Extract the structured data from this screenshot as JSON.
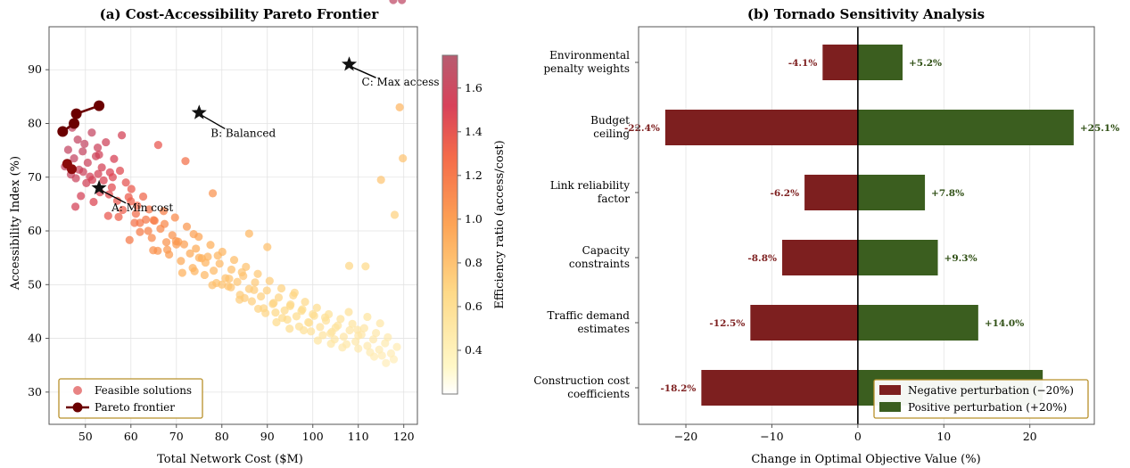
{
  "chart_data": [
    {
      "type": "scatter",
      "title": "(a) Cost-Accessibility Pareto Frontier",
      "xlabel": "Total Network Cost ($M)",
      "ylabel": "Accessibility Index (%)",
      "xlim": [
        42,
        123
      ],
      "ylim": [
        24,
        98
      ],
      "xticks": [
        50,
        60,
        70,
        80,
        90,
        100,
        110,
        120
      ],
      "yticks": [
        30,
        40,
        50,
        60,
        70,
        80,
        90
      ],
      "grid": true,
      "legend_placement": "lower-left",
      "colorbar": {
        "label": "Efficiency ratio (access/cost)",
        "range": [
          0.2,
          1.75
        ],
        "ticks": [
          0.4,
          0.6,
          0.8,
          1.0,
          1.2,
          1.4,
          1.6
        ],
        "colormap": "YlOrRd"
      },
      "series": [
        {
          "name": "Feasible solutions",
          "color": "#e05a5a",
          "points_x": [
            45.5,
            46.2,
            46.8,
            47.1,
            47.5,
            47.9,
            48.3,
            48.6,
            49.0,
            49.4,
            49.8,
            50.2,
            50.5,
            51.0,
            51.4,
            51.8,
            52.3,
            52.7,
            53.2,
            53.6,
            54.0,
            54.5,
            55.0,
            55.4,
            55.8,
            56.3,
            57.0,
            57.6,
            58.2,
            58.9,
            59.5,
            60.1,
            60.8,
            61.4,
            62.0,
            62.7,
            63.3,
            64.0,
            64.6,
            65.2,
            65.9,
            66.5,
            67.2,
            67.8,
            68.4,
            69.1,
            69.7,
            70.4,
            71.0,
            71.7,
            72.3,
            73.0,
            73.6,
            74.3,
            74.9,
            75.6,
            76.2,
            76.9,
            77.5,
            78.2,
            78.8,
            79.5,
            80.1,
            80.8,
            81.4,
            82.1,
            82.7,
            83.4,
            84.0,
            84.7,
            85.3,
            86.0,
            86.6,
            87.3,
            87.9,
            88.6,
            89.2,
            89.9,
            90.5,
            91.2,
            91.8,
            92.5,
            93.1,
            93.8,
            94.4,
            95.1,
            95.7,
            96.4,
            97.0,
            97.7,
            98.3,
            99.0,
            99.6,
            100.3,
            100.9,
            101.6,
            102.2,
            102.9,
            103.5,
            104.2,
            104.8,
            105.5,
            106.1,
            106.8,
            107.4,
            108.1,
            108.7,
            109.4,
            110.0,
            110.7,
            111.3,
            112.0,
            112.6,
            113.3,
            113.9,
            114.6,
            115.2,
            115.9,
            116.5,
            117.2,
            117.8,
            118.5,
            119.1,
            119.8,
            56.0,
            60.0,
            65.0,
            70.0,
            75.0,
            80.0,
            85.0,
            95.0,
            100.0,
            105.0,
            110.0,
            115.0,
            118.0,
            62.0,
            68.0,
            74.0,
            82.0,
            88.0,
            92.0,
            98.0,
            104.0,
            112.0,
            108.0,
            96.0,
            90.0,
            86.0,
            78.0,
            72.0,
            66.0,
            58.0,
            53.0,
            49.5,
            51.5,
            47.8,
            52.8,
            55.2,
            57.3,
            59.7,
            61.1,
            63.8,
            64.9,
            67.4,
            69.9,
            71.3,
            73.8,
            76.4,
            77.9,
            79.1,
            81.6,
            83.9,
            84.4,
            87.1,
            89.6,
            91.4,
            93.3,
            94.9,
            97.5,
            99.2,
            101.1,
            102.7,
            103.9,
            106.5,
            107.9,
            109.8,
            111.6,
            113.5,
            114.8,
            116.1,
            117.7,
            119.6
          ],
          "points_y": [
            72.0,
            75.1,
            70.5,
            79.2,
            73.5,
            69.8,
            77.0,
            71.4,
            66.5,
            74.8,
            76.2,
            68.9,
            72.7,
            70.1,
            78.3,
            65.4,
            73.9,
            75.5,
            67.2,
            71.8,
            69.4,
            76.5,
            62.8,
            70.9,
            68.1,
            73.4,
            65.6,
            71.2,
            63.9,
            69.0,
            66.3,
            67.8,
            61.5,
            64.7,
            59.8,
            66.4,
            62.1,
            64.0,
            58.7,
            61.9,
            56.3,
            60.4,
            63.7,
            57.9,
            55.6,
            59.2,
            62.5,
            58.0,
            54.4,
            57.5,
            60.8,
            55.8,
            53.1,
            56.7,
            58.9,
            54.9,
            51.8,
            55.2,
            57.4,
            52.6,
            50.3,
            53.9,
            56.1,
            51.2,
            49.7,
            52.8,
            54.6,
            50.5,
            48.1,
            51.6,
            53.3,
            49.2,
            46.9,
            50.4,
            52.0,
            47.8,
            45.6,
            48.9,
            50.7,
            46.4,
            44.8,
            47.6,
            49.3,
            45.2,
            43.5,
            46.3,
            48.0,
            44.1,
            42.2,
            45.4,
            46.8,
            43.0,
            41.3,
            44.2,
            45.7,
            42.1,
            40.6,
            43.3,
            44.5,
            41.2,
            39.8,
            42.4,
            43.6,
            40.3,
            38.9,
            41.5,
            42.7,
            39.4,
            38.1,
            40.7,
            41.9,
            38.6,
            37.4,
            39.8,
            41.0,
            37.9,
            36.8,
            39.1,
            40.2,
            37.2,
            36.1,
            38.4,
            83.0,
            73.5,
            70.0,
            65.5,
            62.0,
            57.5,
            55.0,
            50.0,
            47.5,
            46.0,
            44.5,
            42.0,
            40.5,
            69.5,
            63.0,
            61.5,
            56.5,
            52.5,
            49.5,
            45.5,
            43.0,
            41.5,
            39.0,
            44.0,
            53.5,
            48.5,
            57.0,
            59.5,
            67.0,
            73.0,
            76.0,
            77.8,
            74.2,
            71.0,
            69.5,
            64.5,
            70.6,
            66.8,
            62.6,
            58.3,
            63.2,
            60.0,
            56.4,
            61.3,
            58.1,
            52.2,
            59.4,
            54.1,
            49.9,
            55.4,
            51.1,
            47.2,
            52.3,
            49.0,
            44.7,
            46.6,
            43.8,
            41.8,
            45.1,
            42.9,
            39.6,
            43.9,
            40.9,
            38.3,
            44.9,
            41.6,
            53.4,
            36.6,
            42.8,
            35.4
          ],
          "values": []
        },
        {
          "name": "Pareto frontier",
          "color": "#6b0000",
          "x": [
            45.0,
            47.5,
            48.0,
            53.0
          ],
          "y": [
            78.5,
            80.0,
            81.8,
            83.3
          ]
        }
      ],
      "annotations": [
        {
          "label": "A: Min cost",
          "x": 53,
          "y": 68
        },
        {
          "label": "B: Balanced",
          "x": 75,
          "y": 82
        },
        {
          "label": "C: Max access",
          "x": 108,
          "y": 91
        }
      ]
    },
    {
      "type": "bar",
      "title": "(b) Tornado Sensitivity Analysis",
      "xlabel": "Change in Optimal Objective Value (%)",
      "ylabel": "",
      "xlim": [
        -25.5,
        27.5
      ],
      "xticks": [
        -20,
        -10,
        0,
        10,
        20
      ],
      "xtick_labels": [
        "−20",
        "−10",
        "0",
        "10",
        "20"
      ],
      "grid": true,
      "legend_placement": "lower-right",
      "categories": [
        [
          "Environmental",
          "penalty weights"
        ],
        [
          "Budget",
          "ceiling"
        ],
        [
          "Link reliability",
          "factor"
        ],
        [
          "Capacity",
          "constraints"
        ],
        [
          "Traffic demand",
          "estimates"
        ],
        [
          "Construction cost",
          "coefficients"
        ]
      ],
      "series": [
        {
          "name": "Negative perturbation (−20%)",
          "color": "#7d1f1f",
          "values": [
            -4.1,
            -22.4,
            -6.2,
            -8.8,
            -12.5,
            -18.2
          ],
          "labels": [
            "-4.1%",
            "-22.4%",
            "-6.2%",
            "-8.8%",
            "-12.5%",
            "-18.2%"
          ]
        },
        {
          "name": "Positive perturbation (+20%)",
          "color": "#3b5e1f",
          "values": [
            5.2,
            25.1,
            7.8,
            9.3,
            14.0,
            21.5
          ],
          "labels": [
            "+5.2%",
            "+25.1%",
            "+7.8%",
            "+9.3%",
            "+14.0%",
            ""
          ]
        }
      ]
    }
  ]
}
